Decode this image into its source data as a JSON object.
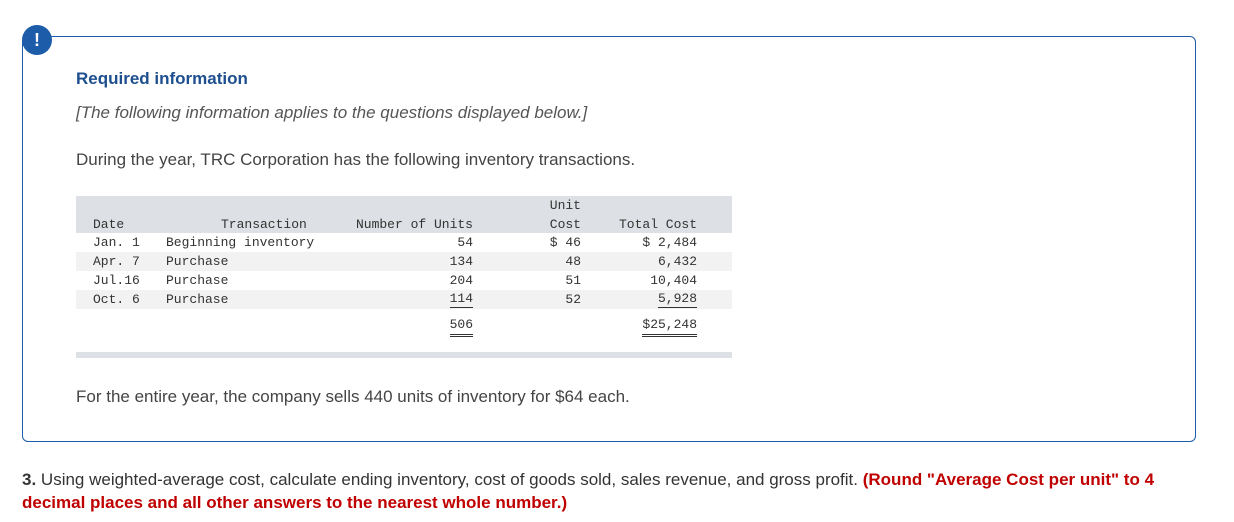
{
  "alert_icon": "!",
  "required_title": "Required information",
  "intro_italic": "[The following information applies to the questions displayed below.]",
  "intro_text": "During the year, TRC Corporation has the following inventory transactions.",
  "table": {
    "headers": {
      "date": "Date",
      "transaction": "Transaction",
      "units": "Number of Units",
      "unit_cost_line1": "Unit",
      "unit_cost_line2": "Cost",
      "total_cost": "Total Cost"
    },
    "rows": [
      {
        "date": "Jan. 1",
        "transaction": "Beginning inventory",
        "units": "54",
        "unit_cost": "$ 46",
        "total_cost": "$ 2,484"
      },
      {
        "date": "Apr. 7",
        "transaction": "Purchase",
        "units": "134",
        "unit_cost": "48",
        "total_cost": "6,432"
      },
      {
        "date": "Jul.16",
        "transaction": "Purchase",
        "units": "204",
        "unit_cost": "51",
        "total_cost": "10,404"
      },
      {
        "date": "Oct. 6",
        "transaction": "Purchase",
        "units": "114",
        "unit_cost": "52",
        "total_cost": "5,928"
      }
    ],
    "totals": {
      "units": "506",
      "total_cost": "$25,248"
    }
  },
  "sale_text": "For the entire year, the company sells 440 units of inventory for $64 each.",
  "question": {
    "number": "3.",
    "text": " Using weighted-average cost, calculate ending inventory, cost of goods sold, sales revenue, and gross profit. ",
    "note": "(Round \"Average Cost per unit\" to 4 decimal places and all other answers to the nearest whole number.)"
  },
  "colors": {
    "accent": "#1d5ca9",
    "title": "#1d4f8f",
    "note_red": "#c00000",
    "table_header_bg": "#dde0e4"
  }
}
